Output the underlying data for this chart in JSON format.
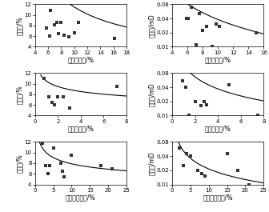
{
  "plots": [
    {
      "row": 0,
      "col": 0,
      "xlabel": "综泥石含量/%",
      "ylabel": "孔隙度/%",
      "xlim": [
        4,
        18
      ],
      "ylim": [
        4,
        12
      ],
      "xticks": [
        4,
        6,
        8,
        10,
        12,
        14,
        16,
        18
      ],
      "yticks": [
        4,
        6,
        8,
        10,
        12
      ],
      "scatter_x": [
        5.8,
        6.2,
        6.4,
        7.0,
        7.3,
        7.6,
        8.0,
        8.4,
        9.2,
        10.1,
        10.6,
        16.2
      ],
      "scatter_y": [
        7.5,
        6.0,
        10.8,
        8.1,
        8.6,
        6.4,
        8.6,
        6.1,
        5.8,
        6.6,
        8.6,
        5.6
      ],
      "curve_a": 55.0,
      "curve_b": -0.68,
      "curve_xstart": 5.0
    },
    {
      "row": 0,
      "col": 1,
      "xlabel": "综泥石含量/%",
      "ylabel": "滤透度/mD",
      "xlim": [
        4,
        16
      ],
      "ylim_log": [
        0.01,
        0.08
      ],
      "xticks": [
        4,
        6,
        8,
        10,
        12,
        14,
        16
      ],
      "yticks": [
        0.01,
        0.02,
        0.04,
        0.08
      ],
      "scatter_x": [
        5.9,
        6.1,
        6.5,
        7.1,
        7.6,
        8.0,
        8.5,
        9.2,
        9.8,
        10.2,
        15.0
      ],
      "scatter_y": [
        0.04,
        0.04,
        0.068,
        0.011,
        0.05,
        0.022,
        0.027,
        0.01,
        0.03,
        0.027,
        0.02
      ],
      "curve_a": 1.2,
      "curve_b": -1.5,
      "curve_xstart": 5.0
    },
    {
      "row": 1,
      "col": 0,
      "xlabel": "伊利石含量/%",
      "ylabel": "孔隙度/%",
      "xlim": [
        0,
        8
      ],
      "ylim": [
        4,
        12
      ],
      "xticks": [
        0,
        2,
        4,
        6,
        8
      ],
      "yticks": [
        4,
        6,
        8,
        10,
        12
      ],
      "scatter_x": [
        0.8,
        1.2,
        1.5,
        1.7,
        2.0,
        2.5,
        3.0,
        7.2
      ],
      "scatter_y": [
        11.0,
        7.5,
        6.5,
        6.0,
        7.5,
        7.5,
        5.5,
        9.5
      ],
      "curve_a": 10.5,
      "curve_b": -0.15,
      "curve_xstart": 0.5
    },
    {
      "row": 1,
      "col": 1,
      "xlabel": "伊利石含量/%",
      "ylabel": "滤透度/mD",
      "xlim": [
        0,
        8
      ],
      "ylim_log": [
        0.01,
        0.08
      ],
      "xticks": [
        0,
        2,
        4,
        6,
        8
      ],
      "yticks": [
        0.01,
        0.02,
        0.04,
        0.08
      ],
      "scatter_x": [
        0.9,
        1.2,
        1.5,
        2.0,
        2.5,
        2.8,
        3.0,
        5.0,
        7.5
      ],
      "scatter_y": [
        0.055,
        0.04,
        0.01,
        0.02,
        0.016,
        0.02,
        0.017,
        0.045,
        0.01
      ],
      "curve_a": 0.12,
      "curve_b": -0.85,
      "curve_xstart": 0.5
    },
    {
      "row": 2,
      "col": 0,
      "xlabel": "伊蒙混层含量/%",
      "ylabel": "孔隙度/%",
      "xlim": [
        0,
        25
      ],
      "ylim": [
        4,
        12
      ],
      "xticks": [
        0,
        5,
        10,
        15,
        20,
        25
      ],
      "yticks": [
        4,
        6,
        8,
        10,
        12
      ],
      "scatter_x": [
        2.0,
        3.0,
        3.5,
        4.0,
        5.0,
        7.0,
        7.5,
        8.0,
        10.0,
        18.0,
        21.0
      ],
      "scatter_y": [
        11.8,
        7.5,
        6.0,
        7.5,
        10.8,
        8.0,
        6.5,
        5.5,
        9.5,
        7.5,
        7.0
      ],
      "curve_a": 12.5,
      "curve_b": -0.2,
      "curve_xstart": 1.0
    },
    {
      "row": 2,
      "col": 1,
      "xlabel": "伊蒙混层含量/%",
      "ylabel": "滤透度/mD",
      "xlim": [
        0,
        25
      ],
      "ylim_log": [
        0.01,
        0.08
      ],
      "xticks": [
        0,
        5,
        10,
        15,
        20,
        25
      ],
      "yticks": [
        0.01,
        0.02,
        0.04,
        0.08
      ],
      "scatter_x": [
        2.0,
        3.0,
        4.0,
        5.0,
        7.0,
        8.0,
        9.0,
        15.0,
        18.0,
        21.0
      ],
      "scatter_y": [
        0.06,
        0.025,
        0.045,
        0.04,
        0.02,
        0.017,
        0.015,
        0.045,
        0.02,
        0.01
      ],
      "curve_a": 0.12,
      "curve_b": -0.75,
      "curve_xstart": 1.5
    }
  ],
  "marker": "s",
  "marker_size": 5,
  "marker_color": "#333333",
  "line_color": "black",
  "line_width": 0.8,
  "tick_fontsize": 5.0,
  "label_fontsize": 5.5
}
